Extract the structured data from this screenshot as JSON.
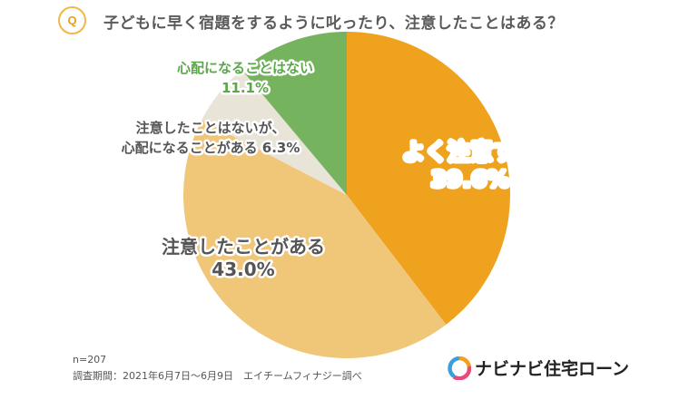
{
  "question": {
    "badge": "Q",
    "text": "子どもに早く宿題をするように叱ったり、注意したことはある？"
  },
  "chart_data": {
    "type": "pie",
    "title": "",
    "slices": [
      {
        "label_lines": [
          "よく注意する"
        ],
        "value": 39.6,
        "value_label": "39.6%",
        "color": "#eea21e",
        "label_color": "#ffffff"
      },
      {
        "label_lines": [
          "注意したことがある"
        ],
        "value": 43.0,
        "value_label": "43.0%",
        "color": "#f0c679",
        "label_color": "#555555"
      },
      {
        "label_lines": [
          "注意したことはないが、",
          "心配になることがある"
        ],
        "value": 6.3,
        "value_label": "6.3%",
        "color": "#e8e4d8",
        "label_color": "#555555"
      },
      {
        "label_lines": [
          "心配になることはない"
        ],
        "value": 11.1,
        "value_label": "11.1%",
        "color": "#75b35e",
        "label_color": "#5aa84a"
      }
    ]
  },
  "footer": {
    "sample": "n=207",
    "survey": "調査期間：2021年6月7日～6月9日　エイチームフィナジー調べ"
  },
  "brand": {
    "name": "ナビナビ住宅ローン",
    "icon": "navinavi-logo-icon",
    "colors": [
      "#f0a020",
      "#e84a7a",
      "#3aa0dc"
    ]
  }
}
